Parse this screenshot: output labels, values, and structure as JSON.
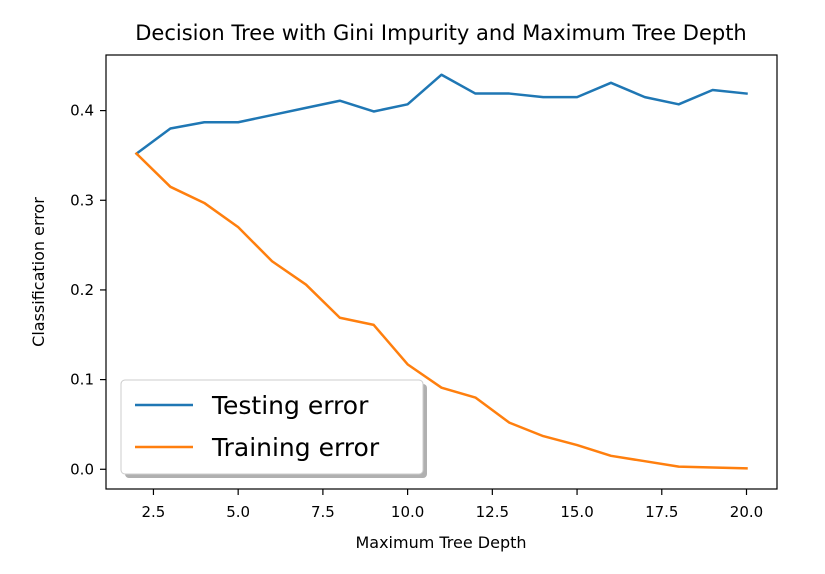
{
  "chart_data": {
    "type": "line",
    "title": "Decision Tree with Gini Impurity and Maximum Tree Depth",
    "xlabel": "Maximum Tree Depth",
    "ylabel": "Classification error",
    "xlim": [
      1.1,
      20.9
    ],
    "ylim": [
      -0.022,
      0.462
    ],
    "xticks": [
      2.5,
      5.0,
      7.5,
      10.0,
      12.5,
      15.0,
      17.5,
      20.0
    ],
    "xtick_labels": [
      "2.5",
      "5.0",
      "7.5",
      "10.0",
      "12.5",
      "15.0",
      "17.5",
      "20.0"
    ],
    "yticks": [
      0.0,
      0.1,
      0.2,
      0.3,
      0.4
    ],
    "ytick_labels": [
      "0.0",
      "0.1",
      "0.2",
      "0.3",
      "0.4"
    ],
    "grid": false,
    "legend_position": "lower-left",
    "x": [
      2,
      3,
      4,
      5,
      6,
      7,
      8,
      9,
      10,
      11,
      12,
      13,
      14,
      15,
      16,
      17,
      18,
      19,
      20
    ],
    "series": [
      {
        "name": "Testing error",
        "color": "#1f77b4",
        "values": [
          0.352,
          0.38,
          0.387,
          0.387,
          0.395,
          0.403,
          0.411,
          0.399,
          0.407,
          0.44,
          0.419,
          0.419,
          0.415,
          0.415,
          0.431,
          0.415,
          0.407,
          0.423,
          0.419
        ]
      },
      {
        "name": "Training error",
        "color": "#ff7f0e",
        "values": [
          0.352,
          0.315,
          0.297,
          0.27,
          0.232,
          0.206,
          0.169,
          0.161,
          0.117,
          0.091,
          0.08,
          0.052,
          0.037,
          0.027,
          0.015,
          0.009,
          0.003,
          0.002,
          0.001
        ]
      }
    ]
  }
}
